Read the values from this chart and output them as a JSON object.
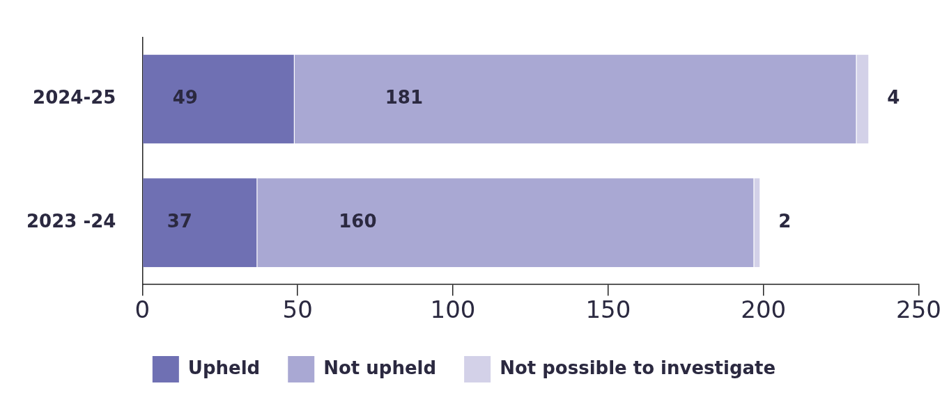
{
  "chart_data": {
    "type": "bar",
    "orientation": "horizontal",
    "stacked": true,
    "categories": [
      "2024-25",
      "2023 -24"
    ],
    "series": [
      {
        "name": "Upheld",
        "color": "#6f70b3",
        "values": [
          49,
          37
        ]
      },
      {
        "name": "Not upheld",
        "color": "#a9a8d3",
        "values": [
          181,
          160
        ]
      },
      {
        "name": "Not possible to investigate",
        "color": "#d3d1e8",
        "values": [
          4,
          2
        ]
      }
    ],
    "xlim": [
      0,
      250
    ],
    "xticks": [
      0,
      50,
      100,
      150,
      200,
      250
    ],
    "data_labels": true,
    "grid": false,
    "legend": "bottom"
  }
}
